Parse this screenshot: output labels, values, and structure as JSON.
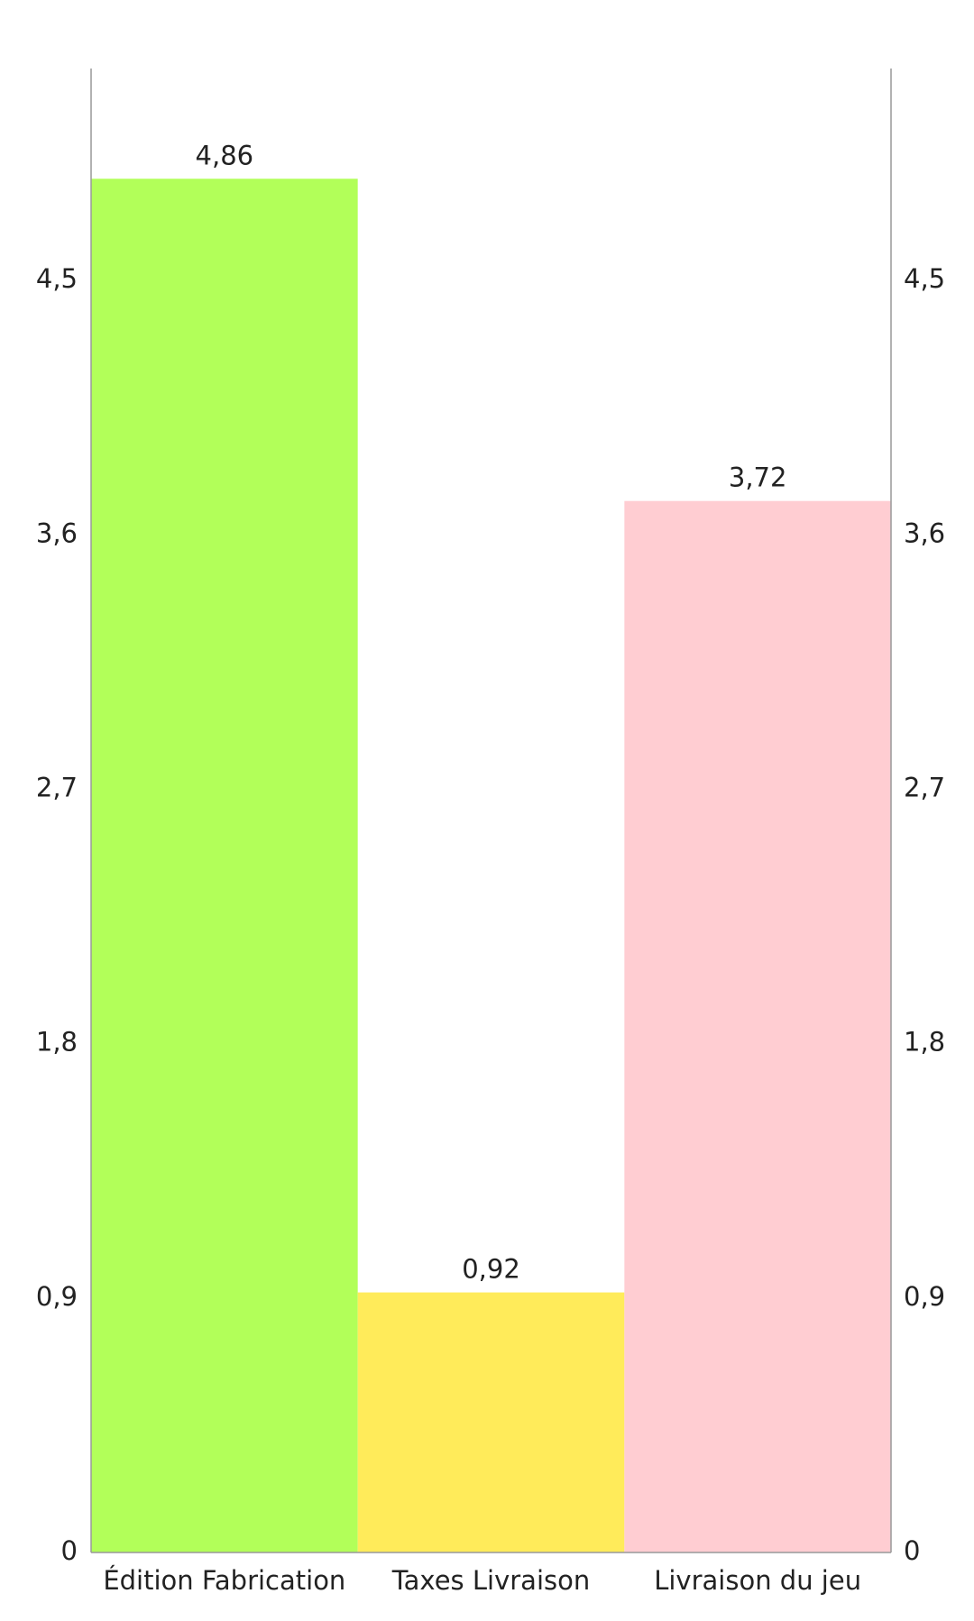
{
  "chart_data": {
    "type": "bar",
    "categories": [
      "Édition Fabrication",
      "Taxes Livraison",
      "Livraison du jeu"
    ],
    "values": [
      4.86,
      0.92,
      3.72
    ],
    "value_labels": [
      "4,86",
      "0,92",
      "3,72"
    ],
    "colors": [
      "#b2ff59",
      "#ffeb5a",
      "#ffcdd2"
    ],
    "ylim": [
      0,
      5.25
    ],
    "yticks": [
      {
        "value": 0,
        "label": "0"
      },
      {
        "value": 0.9,
        "label": "0,9"
      },
      {
        "value": 1.8,
        "label": "1,8"
      },
      {
        "value": 2.7,
        "label": "2,7"
      },
      {
        "value": 3.6,
        "label": "3,6"
      },
      {
        "value": 4.5,
        "label": "4,5"
      }
    ],
    "grid": false
  }
}
